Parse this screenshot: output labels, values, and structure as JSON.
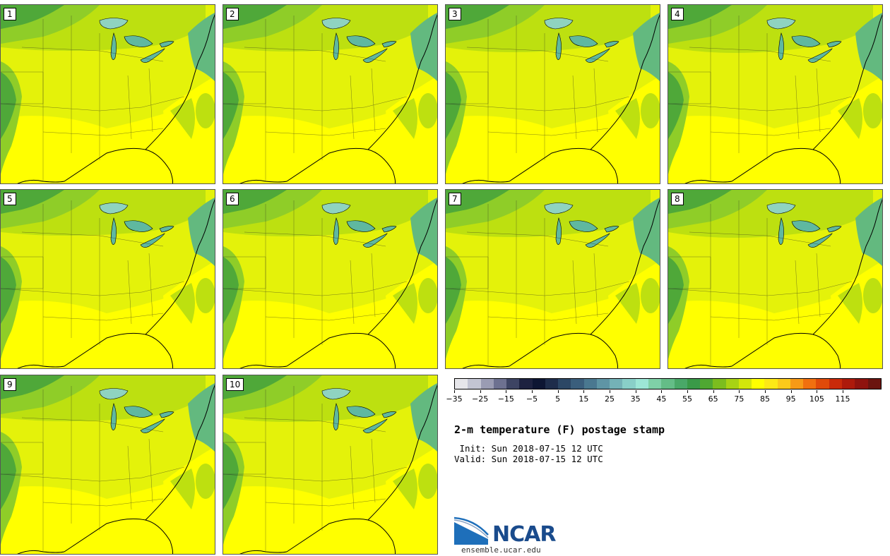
{
  "panels": [
    {
      "label": "1"
    },
    {
      "label": "2"
    },
    {
      "label": "3"
    },
    {
      "label": "4"
    },
    {
      "label": "5"
    },
    {
      "label": "6"
    },
    {
      "label": "7"
    },
    {
      "label": "8"
    },
    {
      "label": "9"
    },
    {
      "label": "10"
    }
  ],
  "colorbar": {
    "colors": [
      "#e6e6ea",
      "#c3c5d3",
      "#9a9cb3",
      "#6d7190",
      "#3d4463",
      "#1d2240",
      "#0d1633",
      "#1e2d4b",
      "#2c4765",
      "#3a5e7c",
      "#4a7890",
      "#5f95a5",
      "#74b2b7",
      "#89cfc8",
      "#9de6d6",
      "#7fd0a7",
      "#64bd87",
      "#49a868",
      "#3a9a48",
      "#4fa832",
      "#7cbd1e",
      "#a8d214",
      "#d3e60b",
      "#ffff00",
      "#fde816",
      "#fbc91b",
      "#f79a17",
      "#f1700f",
      "#e04a0a",
      "#c92a0a",
      "#ad1a0b",
      "#8f130e",
      "#6b1410"
    ],
    "tick_labels": [
      "−35",
      "−25",
      "−15",
      "−5",
      "5",
      "15",
      "25",
      "35",
      "45",
      "55",
      "65",
      "75",
      "85",
      "95",
      "105",
      "115"
    ]
  },
  "title": "2-m temperature (F) postage stamp",
  "init_text": " Init: Sun 2018-07-15 12 UTC",
  "valid_text": "Valid: Sun 2018-07-15 12 UTC",
  "logo": {
    "text": "NCAR",
    "site": "ensemble.ucar.edu"
  },
  "map_colors": {
    "hot": "#ffff00",
    "warm": "#e4f20a",
    "mild": "#bde010",
    "cool": "#8fcd28",
    "cold": "#4fa839",
    "coldest": "#3a9a48",
    "lake": "#5fb8a0",
    "lakeLight": "#8fd3c0",
    "coast": "#63b97f"
  }
}
